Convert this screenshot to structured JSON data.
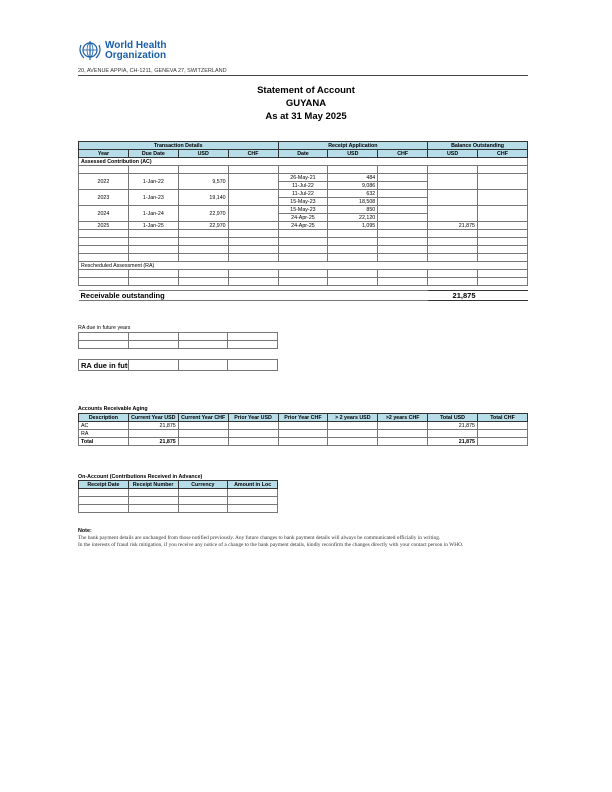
{
  "header": {
    "org_name_1": "World Health",
    "org_name_2": "Organization",
    "address": "20, AVENUE APPIA, CH-1211, GENEVA 27, SWITZERLAND",
    "title": "Statement of Account",
    "country": "GUYANA",
    "as_at": "As at 31 May 2025"
  },
  "main": {
    "groups": [
      "Transaction Details",
      "Receipt Application",
      "Balance Outstanding"
    ],
    "columns": [
      "Year",
      "Due Date",
      "USD",
      "CHF",
      "Date",
      "USD",
      "CHF",
      "USD",
      "CHF"
    ],
    "ac_label": "Assessed Contribution (AC)",
    "rows": [
      {
        "year": "2022",
        "due": "1-Jan-22",
        "usd": "9,570",
        "receipts": [
          {
            "date": "26-May-21",
            "usd": "484"
          },
          {
            "date": "11-Jul-22",
            "usd": "9,086"
          }
        ],
        "bal_usd": ""
      },
      {
        "year": "2023",
        "due": "1-Jan-23",
        "usd": "19,140",
        "receipts": [
          {
            "date": "11-Jul-22",
            "usd": "632"
          },
          {
            "date": "15-May-23",
            "usd": "18,508"
          }
        ],
        "bal_usd": ""
      },
      {
        "year": "2024",
        "due": "1-Jan-24",
        "usd": "22,970",
        "receipts": [
          {
            "date": "15-May-23",
            "usd": "850"
          },
          {
            "date": "24-Apr-25",
            "usd": "22,120"
          }
        ],
        "bal_usd": ""
      },
      {
        "year": "2025",
        "due": "1-Jan-25",
        "usd": "22,970",
        "receipts": [
          {
            "date": "24-Apr-25",
            "usd": "1,095"
          }
        ],
        "bal_usd": "21,875"
      }
    ],
    "ra_label": "Rescheduled Assessment (RA)",
    "receivable_label": "Receivable outstanding",
    "receivable_value": "21,875"
  },
  "ra_future": {
    "label": "RA  due in future years",
    "total_label": "RA due in future years"
  },
  "aging": {
    "title": "Accounts Receivable Aging",
    "columns": [
      "Description",
      "Current Year USD",
      "Current Year CHF",
      "Prior Year USD",
      "Prior Year CHF",
      "> 2 years USD",
      ">2 years CHF",
      "Total USD",
      "Total CHF"
    ],
    "rows": [
      [
        "AC",
        "21,875",
        "",
        "",
        "",
        "",
        "",
        "21,875",
        ""
      ],
      [
        "RA",
        "",
        "",
        "",
        "",
        "",
        "",
        "",
        ""
      ],
      [
        "Total",
        "21,875",
        "",
        "",
        "",
        "",
        "",
        "21,875",
        ""
      ]
    ]
  },
  "on_account": {
    "title": "On-Account (Contributions Received in Advance)",
    "columns": [
      "Receipt Date",
      "Receipt Number",
      "Currency",
      "Amount in Loc"
    ]
  },
  "note": {
    "title": "Note:",
    "line1": "The bank payment details are unchanged from those notified previously.  Any future changes to bank payment details will always be communicated officially in writing.",
    "line2": "In the interests of fraud risk mitigation, if you receive any notice of a change to the bank payment details, kindly reconfirm the changes directly with your contact person in WHO."
  }
}
